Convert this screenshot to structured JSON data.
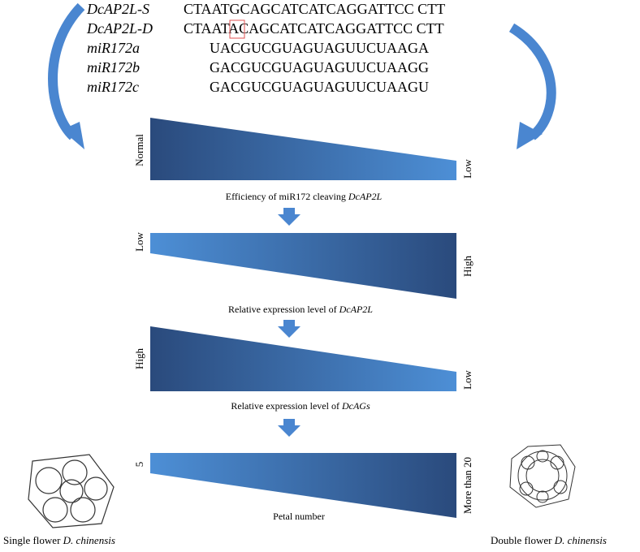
{
  "sequences": [
    {
      "label": "DcAP2L-S",
      "seq": "CTAATGCAGCATCATCAGGATTCC CTT"
    },
    {
      "label": "DcAP2L-D",
      "seq": "CTAATACAGCATCATCAGGATTCC CTT"
    }
  ],
  "mirnas": [
    {
      "label": "miR172a",
      "seq": "UACGUCGUAGUAGUUCUAAGA"
    },
    {
      "label": "miR172b",
      "seq": "GACGUCGUAGUAGUUCUAAGG"
    },
    {
      "label": "miR172c",
      "seq": "GACGUCGUAGUAGUUCUAAGU"
    }
  ],
  "panels": [
    {
      "left": "Normal",
      "right": "Low",
      "caption": "Efficiency of miR172 cleaving ",
      "caption_italic": "DcAP2L"
    },
    {
      "left": "Low",
      "right": "High",
      "caption": "Relative expression level of ",
      "caption_italic": "DcAP2L"
    },
    {
      "left": "High",
      "right": "Low",
      "caption": "Relative expression level of ",
      "caption_italic": "DcAGs"
    },
    {
      "left": "5",
      "right": "More than 20",
      "caption": "Petal number"
    }
  ],
  "flowers": [
    {
      "text": "Single flower ",
      "italic": "D. chinensis"
    },
    {
      "text": "Double flower ",
      "italic": "D. chinensis"
    }
  ]
}
